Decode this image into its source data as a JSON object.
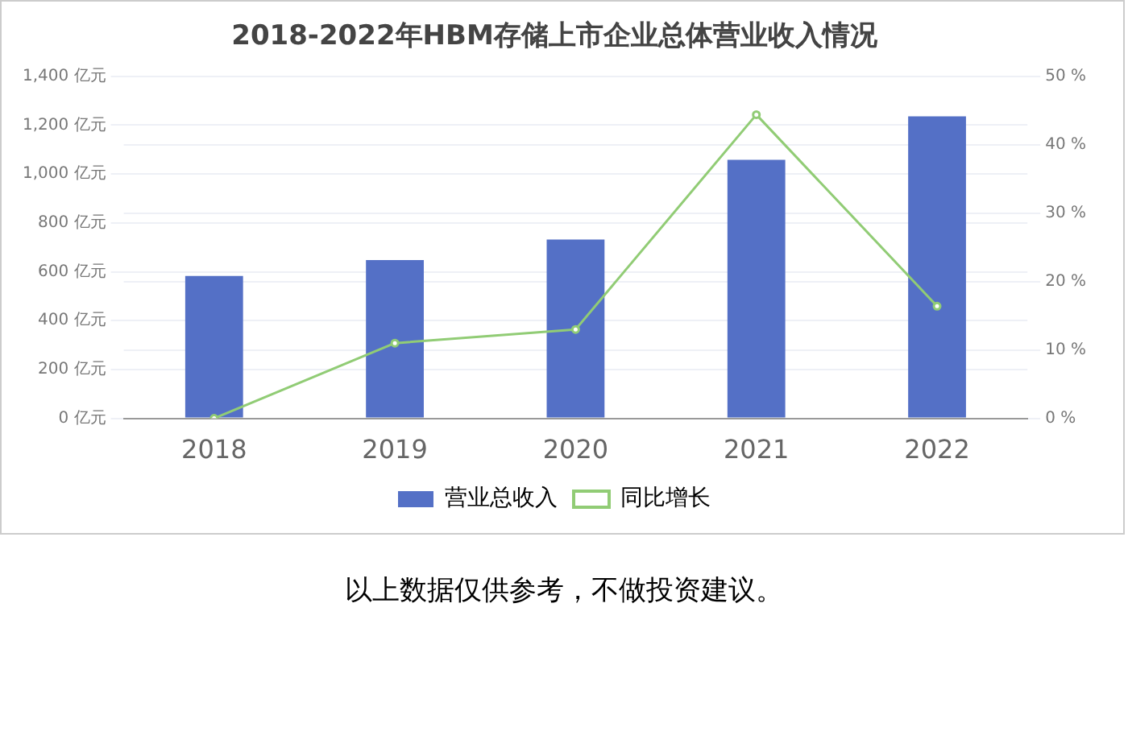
{
  "chart_data": {
    "type": "bar",
    "title": "2018-2022年HBM存储上市企业总体营业收入情况",
    "categories": [
      "2018",
      "2019",
      "2020",
      "2021",
      "2022"
    ],
    "series": [
      {
        "name": "营业总收入",
        "color": "#5470c6",
        "values": [
          583,
          648,
          732,
          1058,
          1236
        ]
      },
      {
        "name": "同比增长",
        "type": "line",
        "axis": "y2",
        "color": "#91cc75",
        "values": [
          0,
          11.0,
          13.0,
          44.4,
          16.4
        ]
      }
    ],
    "ylim": [
      0,
      1400
    ],
    "yticks": [
      {
        "value": 0,
        "label": "0 亿元"
      },
      {
        "value": 200,
        "label": "200 亿元"
      },
      {
        "value": 400,
        "label": "400 亿元"
      },
      {
        "value": 600,
        "label": "600 亿元"
      },
      {
        "value": 800,
        "label": "800 亿元"
      },
      {
        "value": 1000,
        "label": "1,000 亿元"
      },
      {
        "value": 1200,
        "label": "1,200 亿元"
      },
      {
        "value": 1400,
        "label": "1,400 亿元"
      }
    ],
    "y2lim": [
      0,
      50
    ],
    "y2ticks": [
      {
        "value": 0,
        "label": "0 %"
      },
      {
        "value": 10,
        "label": "10 %"
      },
      {
        "value": 20,
        "label": "20 %"
      },
      {
        "value": 30,
        "label": "30 %"
      },
      {
        "value": 40,
        "label": "40 %"
      },
      {
        "value": 50,
        "label": "50 %"
      }
    ],
    "grid": true,
    "legend": "bottom",
    "marker": "circle",
    "line_style": "solid",
    "annotations": [
      "以上数据仅供参考，不做投资建议。"
    ]
  }
}
